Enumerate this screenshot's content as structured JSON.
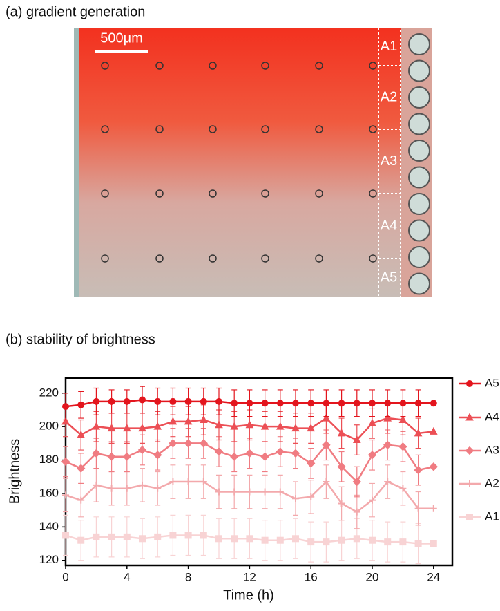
{
  "panel_a": {
    "title": "(a) gradient generation",
    "scale_bar": "500μm",
    "regions": [
      "A1",
      "A2",
      "A3",
      "A4",
      "A5"
    ]
  },
  "chart_data": {
    "type": "line",
    "title": "(b) stability of brightness",
    "x_label": "Time (h)",
    "y_label": "Brightness",
    "x": [
      0,
      1,
      2,
      3,
      4,
      5,
      6,
      7,
      8,
      9,
      10,
      11,
      12,
      13,
      14,
      15,
      16,
      17,
      18,
      19,
      20,
      21,
      22,
      23,
      24
    ],
    "xlim": [
      0,
      25
    ],
    "xticks": [
      0,
      4,
      8,
      12,
      16,
      20,
      24
    ],
    "ylim": [
      117,
      229
    ],
    "yticks": [
      120,
      140,
      160,
      180,
      200,
      220
    ],
    "series": [
      {
        "name": "A5",
        "color": "#e3151d",
        "marker": "circle",
        "values": [
          212,
          213,
          215,
          215,
          215,
          216,
          215,
          215,
          215,
          215,
          215,
          214,
          214,
          214,
          214,
          214,
          214,
          214,
          214,
          214,
          214,
          214,
          214,
          214,
          214
        ],
        "errors": [
          8,
          8,
          8,
          7,
          7,
          8,
          8,
          8,
          8,
          8,
          8,
          8,
          8,
          8,
          8,
          8,
          8,
          8,
          8,
          8,
          8,
          8,
          8,
          8,
          0
        ]
      },
      {
        "name": "A4",
        "color": "#ec4f55",
        "marker": "triangle",
        "values": [
          203,
          195,
          200,
          199,
          199,
          199,
          200,
          203,
          203,
          204,
          201,
          200,
          201,
          200,
          200,
          199,
          199,
          205,
          196,
          192,
          202,
          205,
          204,
          196,
          197
        ],
        "errors": [
          9,
          9,
          9,
          9,
          9,
          9,
          9,
          9,
          9,
          9,
          9,
          9,
          9,
          9,
          9,
          9,
          9,
          9,
          9,
          9,
          9,
          9,
          9,
          9,
          0
        ]
      },
      {
        "name": "A3",
        "color": "#f07c82",
        "marker": "diamond",
        "values": [
          179,
          175,
          184,
          182,
          182,
          186,
          183,
          190,
          190,
          190,
          185,
          182,
          184,
          182,
          185,
          184,
          178,
          189,
          176,
          167,
          183,
          189,
          188,
          174,
          176
        ],
        "errors": [
          9,
          9,
          9,
          9,
          9,
          9,
          9,
          9,
          9,
          9,
          9,
          9,
          9,
          9,
          9,
          9,
          9,
          9,
          9,
          9,
          9,
          9,
          9,
          9,
          0
        ]
      },
      {
        "name": "A2",
        "color": "#f3a9ac",
        "marker": "plus",
        "values": [
          159,
          156,
          165,
          163,
          163,
          165,
          163,
          167,
          167,
          167,
          161,
          161,
          161,
          161,
          161,
          157,
          158,
          167,
          154,
          149,
          156,
          167,
          163,
          151,
          151
        ],
        "errors": [
          10,
          10,
          10,
          10,
          10,
          10,
          10,
          10,
          10,
          10,
          10,
          10,
          10,
          10,
          10,
          10,
          10,
          10,
          10,
          10,
          10,
          10,
          10,
          10,
          0
        ]
      },
      {
        "name": "A1",
        "color": "#f8d3d4",
        "marker": "square",
        "values": [
          135,
          132,
          134,
          134,
          134,
          133,
          134,
          135,
          135,
          135,
          133,
          133,
          133,
          132,
          132,
          133,
          131,
          131,
          132,
          133,
          132,
          131,
          131,
          130,
          130
        ],
        "errors": [
          12,
          12,
          12,
          12,
          12,
          12,
          12,
          12,
          12,
          12,
          12,
          12,
          12,
          12,
          12,
          12,
          12,
          12,
          12,
          12,
          12,
          12,
          12,
          12,
          0
        ]
      }
    ]
  }
}
